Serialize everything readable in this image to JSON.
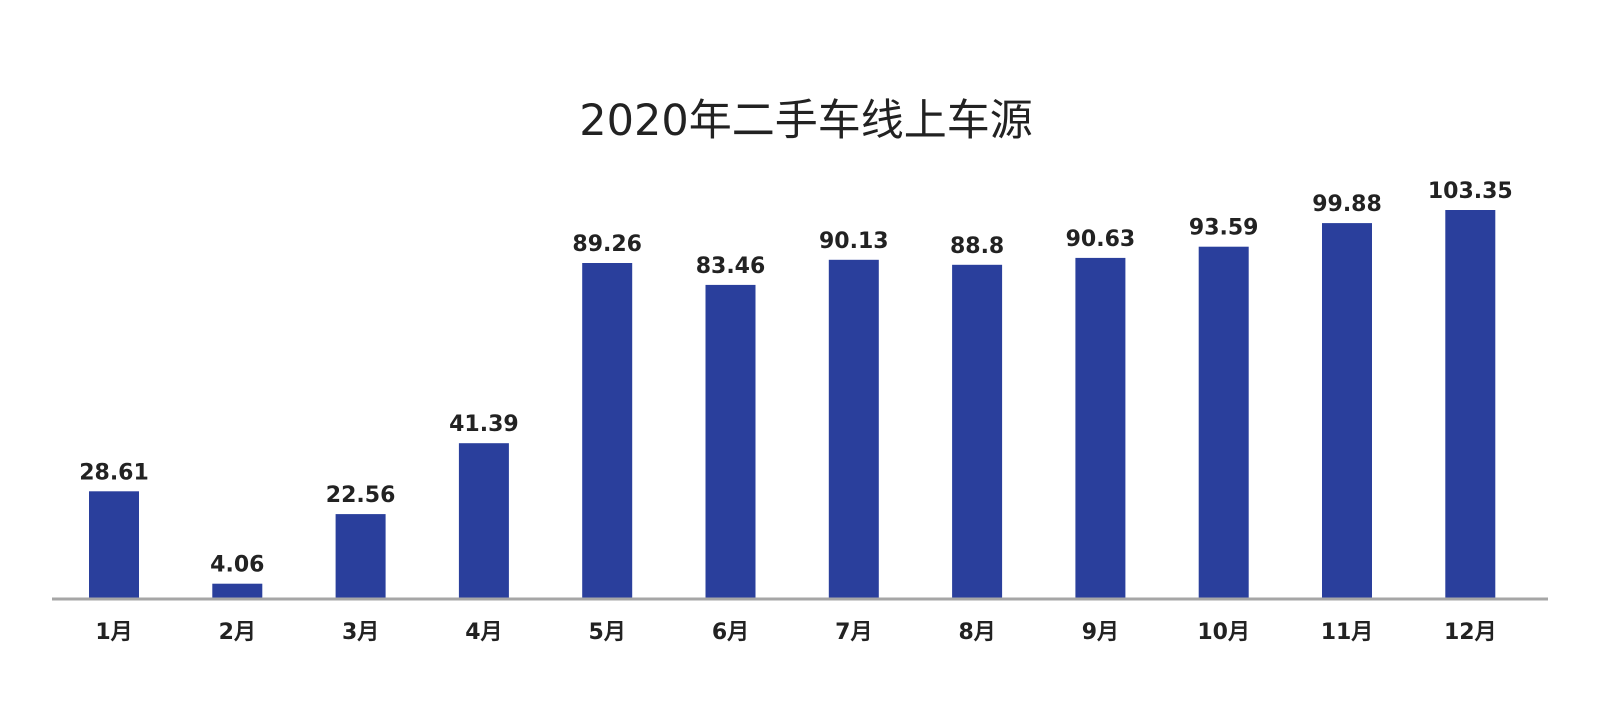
{
  "chart_data": {
    "type": "bar",
    "title": "2020年二手车线上车源",
    "xlabel": "",
    "ylabel": "",
    "categories": [
      "1月",
      "2月",
      "3月",
      "4月",
      "5月",
      "6月",
      "7月",
      "8月",
      "9月",
      "10月",
      "11月",
      "12月"
    ],
    "values": [
      28.61,
      4.06,
      22.56,
      41.39,
      89.26,
      83.46,
      90.13,
      88.8,
      90.63,
      93.59,
      99.88,
      103.35
    ],
    "value_labels": [
      "28.61",
      "4.06",
      "22.56",
      "41.39",
      "89.26",
      "83.46",
      "90.13",
      "88.8",
      "90.63",
      "93.59",
      "99.88",
      "103.35"
    ],
    "ylim": [
      0,
      103.35
    ],
    "grid": false,
    "legend": "none",
    "colors": {
      "bar": "#2a3f9c",
      "axis": "#a6a6a6",
      "text": "#222222"
    }
  }
}
